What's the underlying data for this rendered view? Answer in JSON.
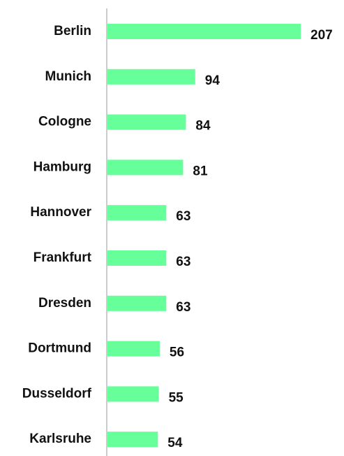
{
  "chart_data": {
    "type": "bar",
    "orientation": "horizontal",
    "categories": [
      "Berlin",
      "Munich",
      "Cologne",
      "Hamburg",
      "Hannover",
      "Frankfurt",
      "Dresden",
      "Dortmund",
      "Dusseldorf",
      "Karlsruhe"
    ],
    "values": [
      207,
      94,
      84,
      81,
      63,
      63,
      63,
      56,
      55,
      54
    ],
    "color": "#66ff99"
  }
}
